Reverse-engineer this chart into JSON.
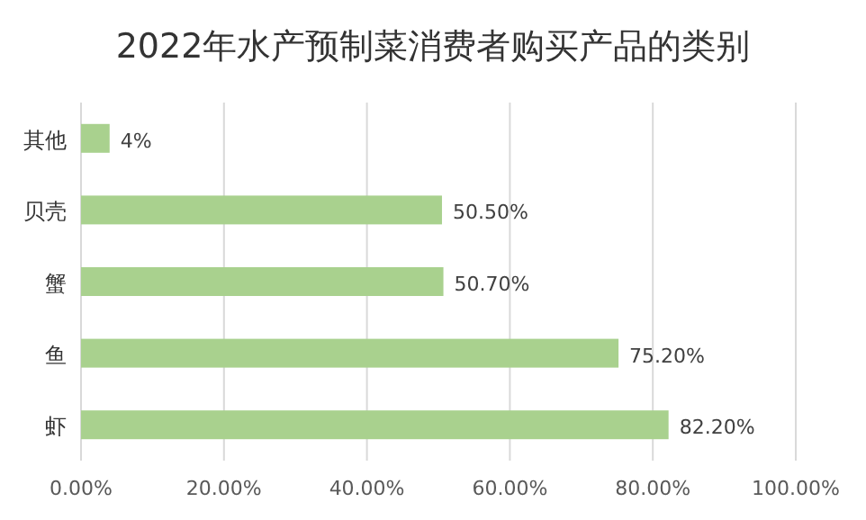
{
  "chart_data": {
    "type": "bar",
    "orientation": "horizontal",
    "title": "2022年水产预制菜消费者购买产品的类别",
    "categories": [
      "其他",
      "贝壳",
      "蟹",
      "鱼",
      "虾"
    ],
    "values": [
      4,
      50.5,
      50.7,
      75.2,
      82.2
    ],
    "value_labels": [
      "4%",
      "50.50%",
      "50.70%",
      "75.20%",
      "82.20%"
    ],
    "color": "#a9d18e",
    "xlim": [
      0,
      100
    ],
    "xticks": [
      {
        "value": 0,
        "label": "0.00%"
      },
      {
        "value": 20,
        "label": "20.00%"
      },
      {
        "value": 40,
        "label": "40.00%"
      },
      {
        "value": 60,
        "label": "60.00%"
      },
      {
        "value": 80,
        "label": "80.00%"
      },
      {
        "value": 100,
        "label": "100.00%"
      }
    ],
    "grid": "x"
  }
}
